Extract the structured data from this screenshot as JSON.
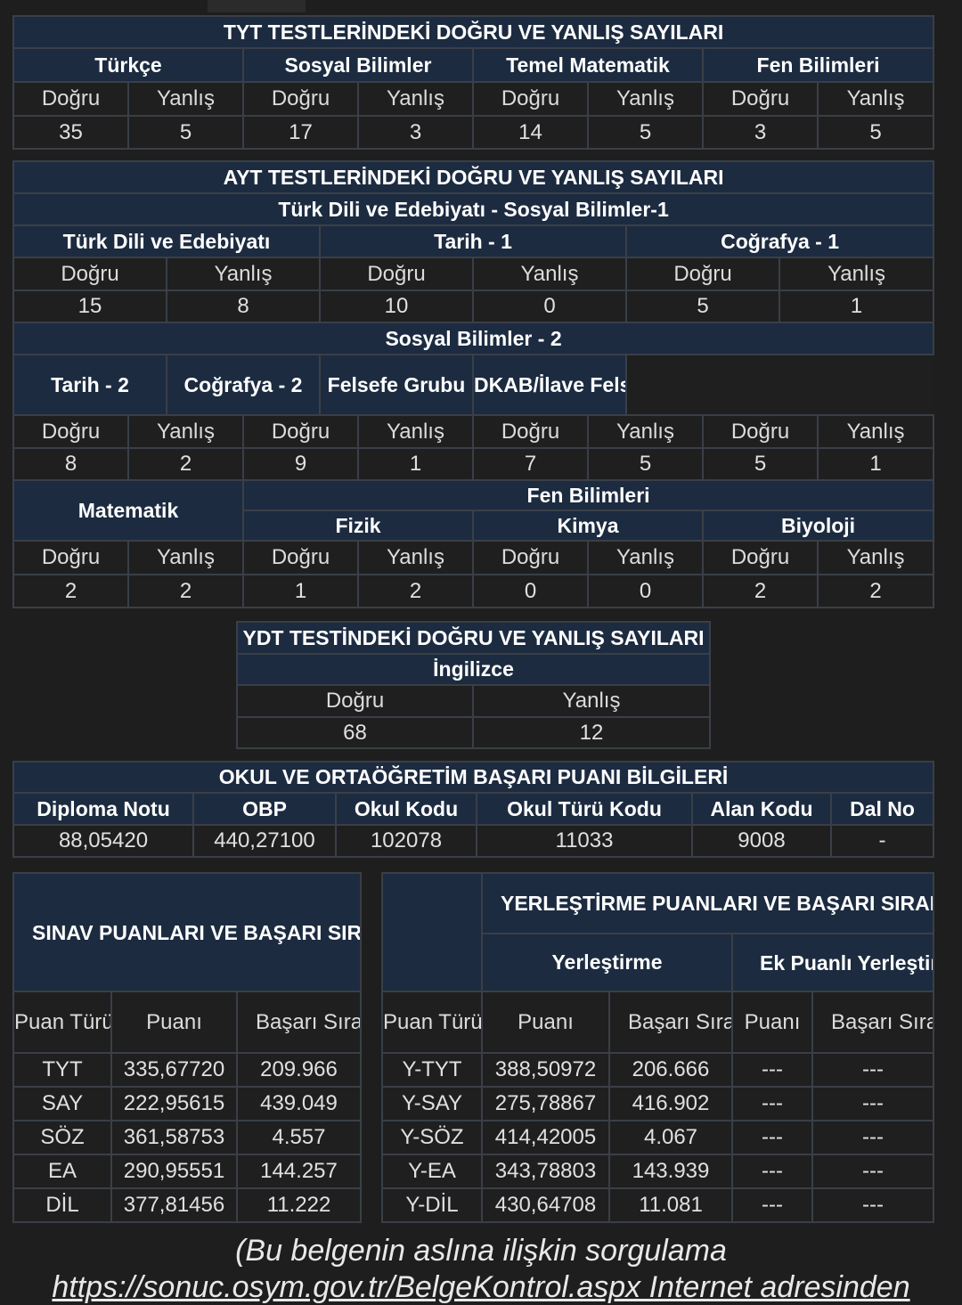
{
  "tyt": {
    "title": "TYT TESTLERİNDEKİ DOĞRU VE YANLIŞ SAYILARI",
    "subjects": [
      "Türkçe",
      "Sosyal Bilimler",
      "Temel Matematik",
      "Fen Bilimleri"
    ],
    "dogru_label": "Doğru",
    "yanlis_label": "Yanlış",
    "values": [
      [
        "35",
        "5"
      ],
      [
        "17",
        "3"
      ],
      [
        "14",
        "5"
      ],
      [
        "3",
        "5"
      ]
    ]
  },
  "ayt": {
    "title": "AYT TESTLERİNDEKİ DOĞRU VE YANLIŞ SAYILARI",
    "group1_title": "Türk Dili ve Edebiyatı - Sosyal Bilimler-1",
    "group1_subjects": [
      "Türk Dili ve Edebiyatı",
      "Tarih - 1",
      "Coğrafya - 1"
    ],
    "group1_values": [
      [
        "15",
        "8"
      ],
      [
        "10",
        "0"
      ],
      [
        "5",
        "1"
      ]
    ],
    "group2_title": "Sosyal Bilimler - 2",
    "group2_subjects": [
      "Tarih - 2",
      "Coğrafya - 2",
      "Felsefe Grubu",
      "DKAB/İlave Felsefe Grubu"
    ],
    "group2_values": [
      [
        "8",
        "2"
      ],
      [
        "9",
        "1"
      ],
      [
        "7",
        "5"
      ],
      [
        "5",
        "1"
      ]
    ],
    "math_label": "Matematik",
    "fen_title": "Fen Bilimleri",
    "fen_subjects": [
      "Fizik",
      "Kimya",
      "Biyoloji"
    ],
    "math_values": [
      "2",
      "2"
    ],
    "fen_values": [
      [
        "1",
        "2"
      ],
      [
        "0",
        "0"
      ],
      [
        "2",
        "2"
      ]
    ]
  },
  "ydt": {
    "title": "YDT TESTİNDEKİ DOĞRU VE YANLIŞ SAYILARI",
    "language": "İngilizce",
    "values": [
      "68",
      "12"
    ]
  },
  "okul": {
    "title": "OKUL VE ORTAÖĞRETİM BAŞARI PUANI BİLGİLERİ",
    "headers": [
      "Diploma Notu",
      "OBP",
      "Okul Kodu",
      "Okul Türü Kodu",
      "Alan Kodu",
      "Dal No"
    ],
    "values": [
      "88,05420",
      "440,27100",
      "102078",
      "11033",
      "9008",
      "-"
    ]
  },
  "sinav": {
    "title": "SINAV PUANLARI VE BAŞARI SIRALARI",
    "col_puan_turu": "Puan Türü",
    "col_puani": "Puanı",
    "col_basari": "Başarı Sırası",
    "rows": [
      {
        "type": "TYT",
        "puan": "335,67720",
        "sira": "209.966"
      },
      {
        "type": "SAY",
        "puan": "222,95615",
        "sira": "439.049"
      },
      {
        "type": "SÖZ",
        "puan": "361,58753",
        "sira": "4.557"
      },
      {
        "type": "EA",
        "puan": "290,95551",
        "sira": "144.257"
      },
      {
        "type": "DİL",
        "puan": "377,81456",
        "sira": "11.222"
      }
    ]
  },
  "yerlestirme": {
    "title": "YERLEŞTİRME PUANLARI VE BAŞARI SIRALARI",
    "sub_yer": "Yerleştirme",
    "sub_ek": "Ek Puanlı Yerleştirme",
    "col_puan_turu": "Puan Türü",
    "col_puani": "Puanı",
    "col_basari": "Başarı Sırası",
    "dash": "---",
    "rows": [
      {
        "type": "Y-TYT",
        "puan": "388,50972",
        "sira": "206.666"
      },
      {
        "type": "Y-SAY",
        "puan": "275,78867",
        "sira": "416.902"
      },
      {
        "type": "Y-SÖZ",
        "puan": "414,42005",
        "sira": "4.067"
      },
      {
        "type": "Y-EA",
        "puan": "343,78803",
        "sira": "143.939"
      },
      {
        "type": "Y-DİL",
        "puan": "430,64708",
        "sira": "11.081"
      }
    ]
  },
  "footer": {
    "line1": "(Bu belgenin aslına ilişkin sorgulama",
    "line2": "https://sonuc.osym.gov.tr/BelgeKontrol.aspx Internet adresinden"
  }
}
